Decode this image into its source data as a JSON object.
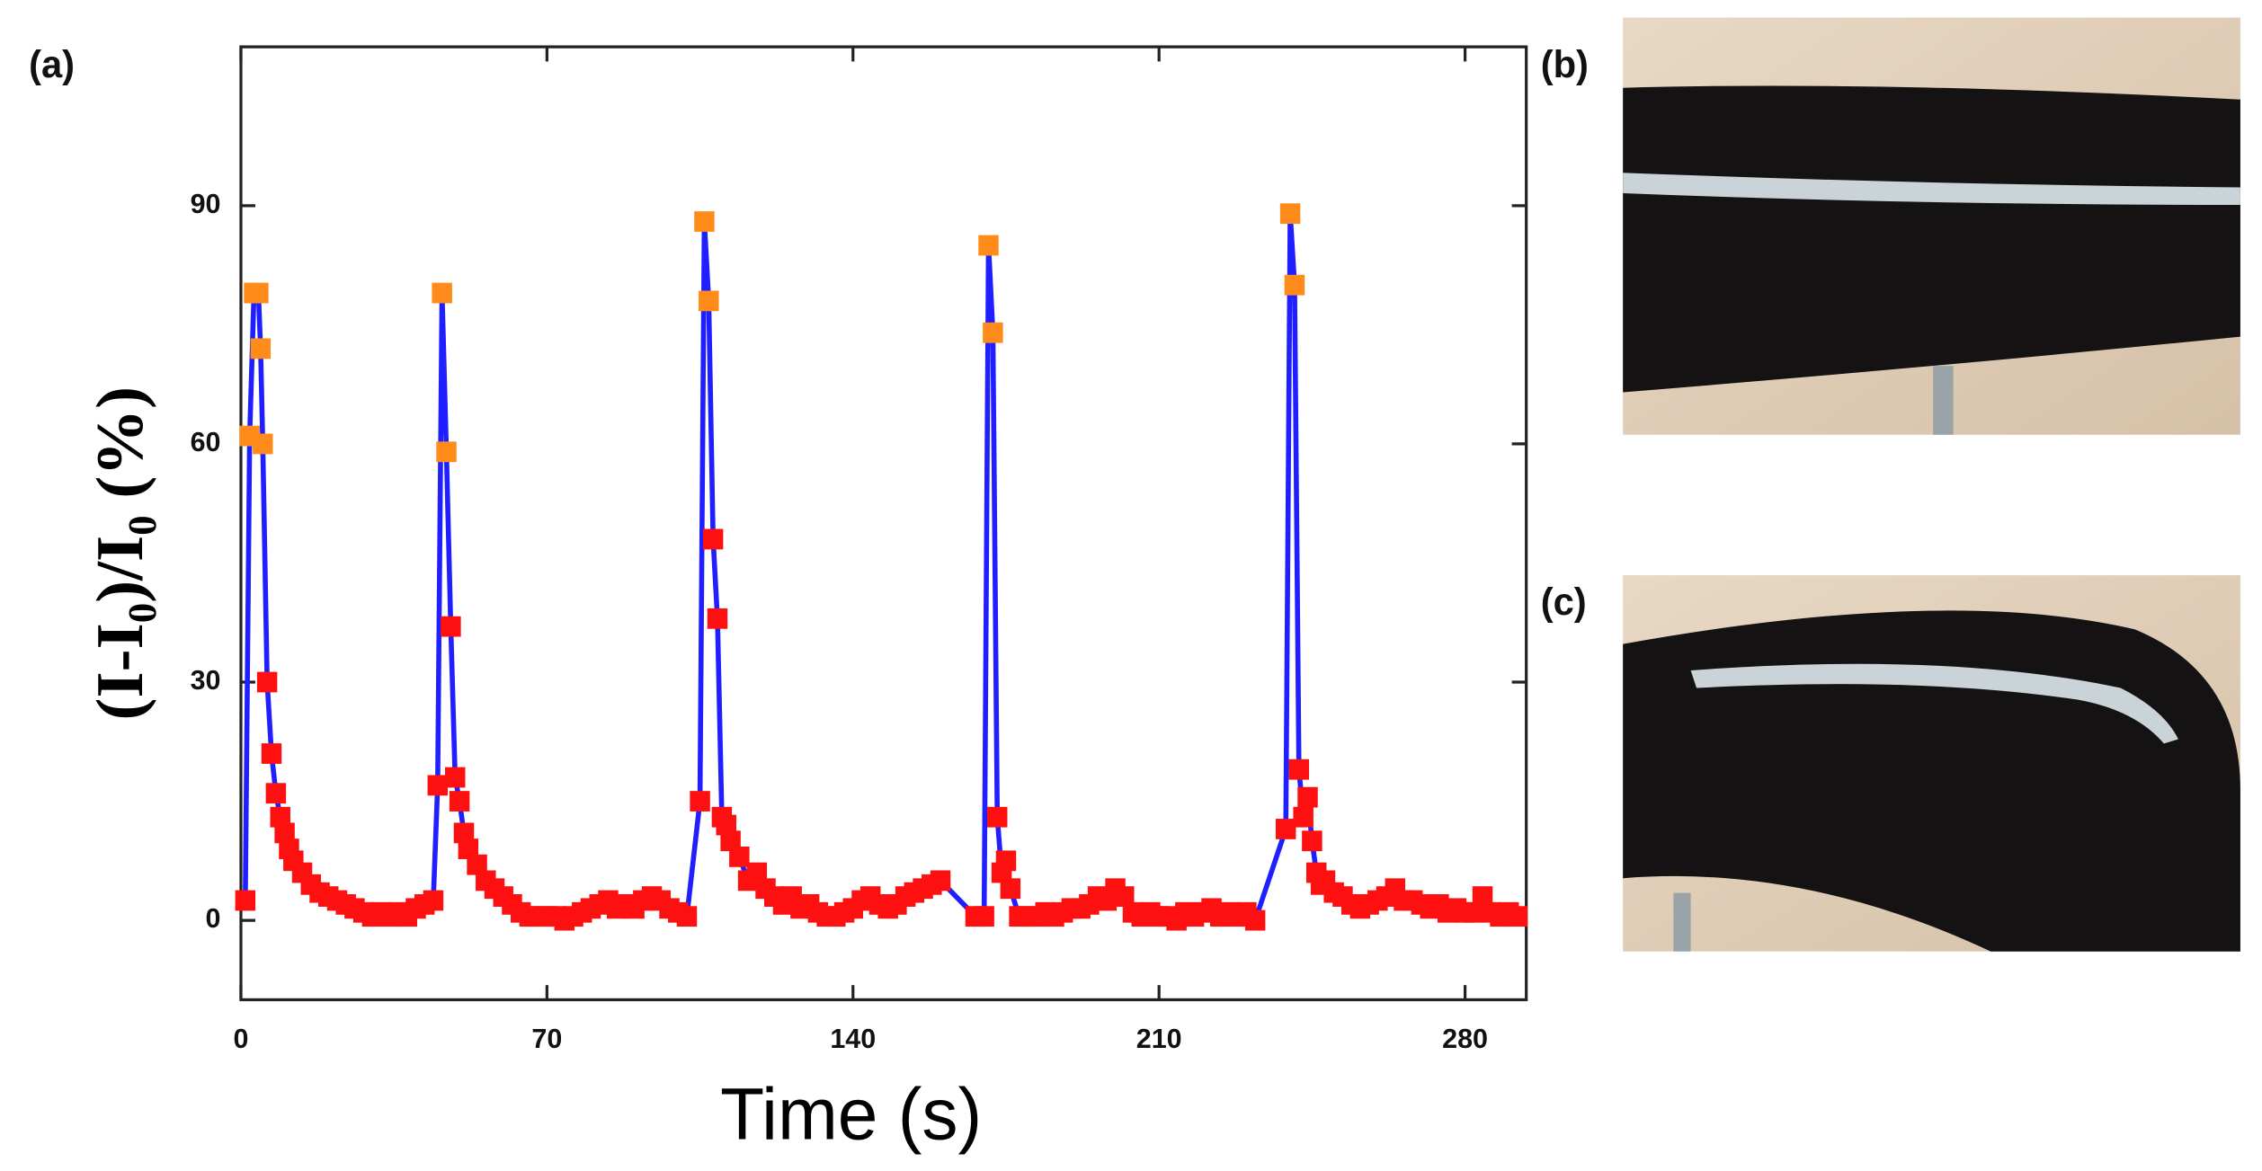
{
  "chart_data": {
    "type": "line",
    "panel_labels": [
      "(a)",
      "(b)",
      "(c)"
    ],
    "xlabel": "Time (s)",
    "ylabel": "(I-I₀)/I₀ (%)",
    "xlim": [
      0,
      294
    ],
    "ylim": [
      -10,
      110
    ],
    "xticks": [
      0,
      70,
      140,
      210,
      280
    ],
    "yticks": [
      0,
      30,
      60,
      90
    ],
    "line_color": "#1f1fff",
    "x": [
      1,
      2,
      3,
      4,
      4.5,
      5,
      6,
      7,
      8,
      9,
      10,
      11,
      12,
      14,
      16,
      18,
      20,
      22,
      24,
      26,
      28,
      30,
      32,
      34,
      36,
      38,
      40,
      42,
      44,
      45,
      46,
      47,
      48,
      49,
      50,
      51,
      52,
      54,
      56,
      58,
      60,
      62,
      64,
      66,
      68,
      70,
      72,
      74,
      76,
      78,
      80,
      82,
      84,
      86,
      88,
      90,
      92,
      94,
      96,
      98,
      100,
      102,
      105,
      106,
      107,
      108,
      109,
      110,
      111,
      112,
      114,
      116,
      118,
      120,
      122,
      124,
      126,
      128,
      130,
      132,
      134,
      136,
      138,
      140,
      142,
      144,
      146,
      148,
      150,
      152,
      154,
      156,
      158,
      160,
      168,
      170,
      171,
      172,
      173,
      174,
      175,
      176,
      178,
      180,
      182,
      184,
      186,
      188,
      190,
      192,
      194,
      196,
      198,
      200,
      202,
      204,
      206,
      208,
      210,
      212,
      214,
      216,
      218,
      220,
      222,
      224,
      226,
      228,
      230,
      232,
      239,
      240,
      241,
      242,
      243,
      244,
      245,
      246,
      247,
      248,
      250,
      252,
      254,
      256,
      258,
      260,
      262,
      264,
      266,
      268,
      270,
      272,
      274,
      276,
      278,
      280,
      282,
      284,
      286,
      288,
      290,
      292
    ],
    "values": [
      2.5,
      61,
      79,
      79,
      72,
      60,
      30,
      21,
      16,
      13,
      11,
      9,
      7.5,
      6,
      4.5,
      3.5,
      3,
      2.5,
      2,
      1.5,
      1,
      0.5,
      1,
      0.5,
      1,
      0.5,
      1.5,
      2,
      2.5,
      17,
      79,
      59,
      37,
      18,
      15,
      11,
      9,
      7,
      5,
      4,
      3,
      2,
      1,
      0.5,
      0.5,
      0.5,
      0.5,
      0,
      0.5,
      1,
      1.5,
      2,
      2.5,
      1.5,
      2,
      1.5,
      2.5,
      3,
      2.5,
      1.5,
      1,
      0.5,
      15,
      88,
      78,
      48,
      38,
      13,
      12,
      10,
      8,
      5,
      6,
      4,
      3,
      2,
      3,
      1.5,
      2,
      1,
      0.5,
      0.5,
      1,
      1.5,
      2.5,
      3,
      2,
      1.5,
      2,
      3,
      3.5,
      4,
      4.5,
      5,
      0.5,
      0.5,
      85,
      74,
      13,
      6,
      7.5,
      4,
      0.5,
      0.5,
      0.5,
      1,
      0.5,
      1,
      1.5,
      1.5,
      2,
      3,
      2.5,
      4,
      3,
      1,
      0.5,
      1,
      0.5,
      0.5,
      0,
      1,
      0.5,
      1,
      1.5,
      0.5,
      1,
      0.5,
      1,
      0,
      11.5,
      89,
      80,
      19,
      13,
      15.5,
      10,
      6,
      4.5,
      5,
      3.5,
      3,
      2,
      1.5,
      2,
      2.5,
      3,
      4,
      2.5,
      2.5,
      2,
      1.5,
      2,
      1,
      1.5,
      1,
      1,
      3,
      1,
      0.5,
      1,
      0.5
    ],
    "marker_colors": [
      "#ff1010",
      "#ff8c1a",
      "#ff8c1a",
      "#ff8c1a",
      "#ff8c1a",
      "#ff8c1a",
      "#ff1010",
      "#ff1010",
      "#ff1010",
      "#ff1010",
      "#ff1010",
      "#ff1010",
      "#ff1010",
      "#ff1010",
      "#ff1010",
      "#ff1010",
      "#ff1010",
      "#ff1010",
      "#ff1010",
      "#ff1010",
      "#ff1010",
      "#ff1010",
      "#ff1010",
      "#ff1010",
      "#ff1010",
      "#ff1010",
      "#ff1010",
      "#ff1010",
      "#ff1010",
      "#ff1010",
      "#ff8c1a",
      "#ff8c1a",
      "#ff1010",
      "#ff1010",
      "#ff1010",
      "#ff1010",
      "#ff1010",
      "#ff1010",
      "#ff1010",
      "#ff1010",
      "#ff1010",
      "#ff1010",
      "#ff1010",
      "#ff1010",
      "#ff1010",
      "#ff1010",
      "#ff1010",
      "#ff1010",
      "#ff1010",
      "#ff1010",
      "#ff1010",
      "#ff1010",
      "#ff1010",
      "#ff1010",
      "#ff1010",
      "#ff1010",
      "#ff1010",
      "#ff1010",
      "#ff1010",
      "#ff1010",
      "#ff1010",
      "#ff1010",
      "#ff1010",
      "#ff8c1a",
      "#ff8c1a",
      "#ff1010",
      "#ff1010",
      "#ff1010",
      "#ff1010",
      "#ff1010",
      "#ff1010",
      "#ff1010",
      "#ff1010",
      "#ff1010",
      "#ff1010",
      "#ff1010",
      "#ff1010",
      "#ff1010",
      "#ff1010",
      "#ff1010",
      "#ff1010",
      "#ff1010",
      "#ff1010",
      "#ff1010",
      "#ff1010",
      "#ff1010",
      "#ff1010",
      "#ff1010",
      "#ff1010",
      "#ff1010",
      "#ff1010",
      "#ff1010",
      "#ff1010",
      "#ff1010",
      "#ff1010",
      "#ff1010",
      "#ff8c1a",
      "#ff8c1a",
      "#ff1010",
      "#ff1010",
      "#ff1010",
      "#ff1010",
      "#ff1010",
      "#ff1010",
      "#ff1010",
      "#ff1010",
      "#ff1010",
      "#ff1010",
      "#ff1010",
      "#ff1010",
      "#ff1010",
      "#ff1010",
      "#ff1010",
      "#ff1010",
      "#ff1010",
      "#ff1010",
      "#ff1010",
      "#ff1010",
      "#ff1010",
      "#ff1010",
      "#ff1010",
      "#ff1010",
      "#ff1010",
      "#ff1010",
      "#ff1010",
      "#ff1010",
      "#ff1010",
      "#ff1010",
      "#ff1010",
      "#ff1010",
      "#ff1010",
      "#ff8c1a",
      "#ff8c1a",
      "#ff1010",
      "#ff1010",
      "#ff1010",
      "#ff1010",
      "#ff1010",
      "#ff1010",
      "#ff1010",
      "#ff1010",
      "#ff1010",
      "#ff1010",
      "#ff1010",
      "#ff1010",
      "#ff1010",
      "#ff1010",
      "#ff1010",
      "#ff1010",
      "#ff1010",
      "#ff1010",
      "#ff1010",
      "#ff1010",
      "#ff1010",
      "#ff1010",
      "#ff1010",
      "#ff1010",
      "#ff1010",
      "#ff1010",
      "#ff1010",
      "#ff1010",
      "#ff1010"
    ]
  }
}
